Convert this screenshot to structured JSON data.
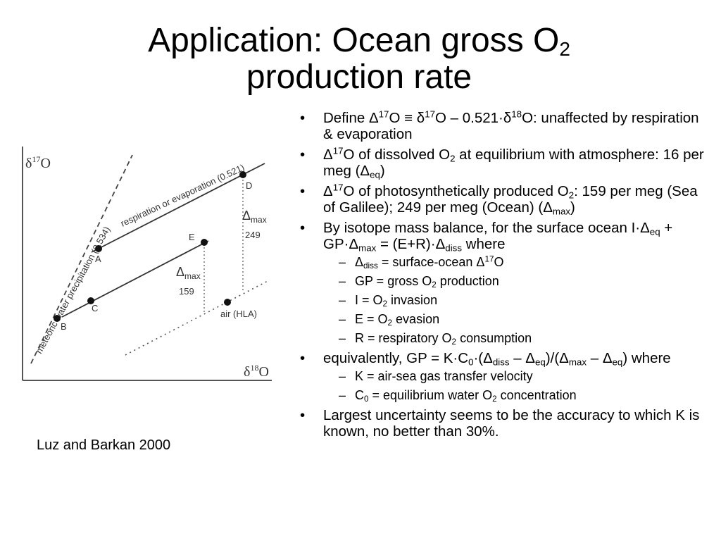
{
  "slide": {
    "title": {
      "line1_text": "Application: Ocean gross O",
      "line1_sub": "2",
      "line2_text": "production rate"
    },
    "caption": "Luz and Barkan 2000",
    "figure": {
      "y_axis_label_main": "δ",
      "y_axis_label_sup": "17",
      "y_axis_label_end": "O",
      "x_axis_label_main": "δ",
      "x_axis_label_sup": "18",
      "x_axis_label_end": "O",
      "line_meteoric": "meteoric water precipitation (0.534)",
      "line_respiration": "respiration or evaporation (0.521)",
      "point_labels": {
        "A": "A",
        "B": "B",
        "C": "C",
        "D": "D",
        "E": "E",
        "air": "air (HLA)"
      },
      "delta_upper": {
        "symbol": "Δ",
        "sub": "max",
        "value": "249"
      },
      "delta_lower": {
        "symbol": "Δ",
        "sub": "max",
        "value": "159"
      }
    },
    "bullets": {
      "b1": {
        "t1": "Define Δ",
        "sup1": "17",
        "t2": "O ≡ δ",
        "sup2": "17",
        "t3": "O – 0.521·δ",
        "sup3": "18",
        "t4": "O: unaffected by respiration & evaporation"
      },
      "b2": {
        "t1": "Δ",
        "sup1": "17",
        "t2": "O of dissolved O",
        "sub1": "2",
        "t3": " at equilibrium with atmosphere: 16 per meg (Δ",
        "sub2": "eq",
        "t4": ")"
      },
      "b3": {
        "t1": "Δ",
        "sup1": "17",
        "t2": "O of photosynthetically produced O",
        "sub1": "2",
        "t3": ": 159 per meg (Sea of Galilee); 249 per meg (Ocean) (Δ",
        "sub2": "max",
        "t4": ")"
      },
      "b4": {
        "t1": "By isotope mass balance, for the surface ocean I·Δ",
        "sub1": "eq",
        "t2": " + GP·Δ",
        "sub2": "max",
        "t3": " = (E+R)·Δ",
        "sub3": "diss",
        "t4": " where",
        "subs": {
          "s1": {
            "t1": "Δ",
            "sub1": "diss",
            "t2": " = surface-ocean Δ",
            "sup1": "17",
            "t3": "O"
          },
          "s2": {
            "t1": "GP = gross O",
            "sub1": "2",
            "t2": " production"
          },
          "s3": {
            "t1": "I = O",
            "sub1": "2",
            "t2": " invasion"
          },
          "s4": {
            "t1": "E = O",
            "sub1": "2",
            "t2": " evasion"
          },
          "s5": {
            "t1": "R = respiratory O",
            "sub1": "2",
            "t2": " consumption"
          }
        }
      },
      "b5": {
        "t1": "equivalently, GP = K·C",
        "sub1": "0",
        "t2": "·(Δ",
        "sub2": "diss",
        "t3": " – Δ",
        "sub3": "eq",
        "t4": ")/(Δ",
        "sub4": "max",
        "t5": " – Δ",
        "sub5": "eq",
        "t6": ") where",
        "subs": {
          "s1": {
            "t1": "K = air-sea gas transfer velocity"
          },
          "s2": {
            "t1": "C",
            "sub1": "0",
            "t2": " = equilibrium water O",
            "sub2": "2",
            "t3": " concentration"
          }
        }
      },
      "b6": {
        "t1": "Largest uncertainty seems to be the accuracy to which K is known, no better than 30%."
      }
    },
    "markers": {
      "bullet": "•",
      "dash": "–"
    }
  }
}
